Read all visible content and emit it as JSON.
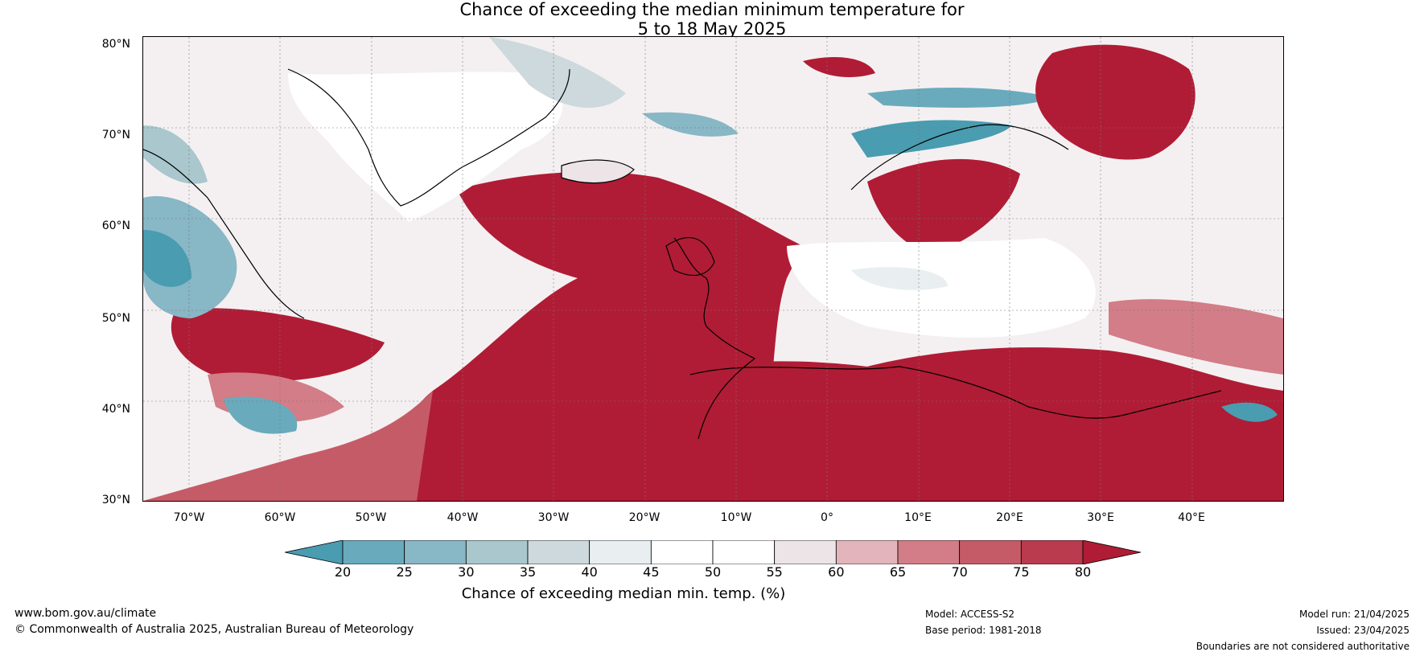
{
  "title_line1": "Chance of exceeding the median minimum temperature for",
  "title_line2": "5 to 18 May 2025",
  "lat_labels": [
    "80°N",
    "70°N",
    "60°N",
    "50°N",
    "40°N",
    "30°N"
  ],
  "lon_labels": [
    "70°W",
    "60°W",
    "50°W",
    "40°W",
    "30°W",
    "20°W",
    "10°W",
    "0°",
    "10°E",
    "20°E",
    "30°E",
    "40°E"
  ],
  "colorbar": {
    "ticks": [
      "20",
      "25",
      "30",
      "35",
      "40",
      "45",
      "50",
      "55",
      "60",
      "65",
      "70",
      "75",
      "80"
    ],
    "colors": [
      "#4a9cb0",
      "#6aaabd",
      "#88b7c6",
      "#a9c7cd",
      "#cdd9dc",
      "#e9eff1",
      "#ffffff",
      "#ffffff",
      "#ece4e6",
      "#e3b4bb",
      "#d27d87",
      "#c65b68",
      "#bb3b4e",
      "#b01c35"
    ],
    "label": "Chance of exceeding median min. temp. (%)"
  },
  "footer": {
    "website": "www.bom.gov.au/climate",
    "copyright": "© Commonwealth of Australia 2025, Australian Bureau of Meteorology",
    "model": "Model: ACCESS-S2",
    "base_period": "Base period: 1981-2018",
    "model_run": "Model run: 21/04/2025",
    "issued": "Issued: 23/04/2025",
    "disclaimer": "Boundaries are not considered authoritative"
  }
}
